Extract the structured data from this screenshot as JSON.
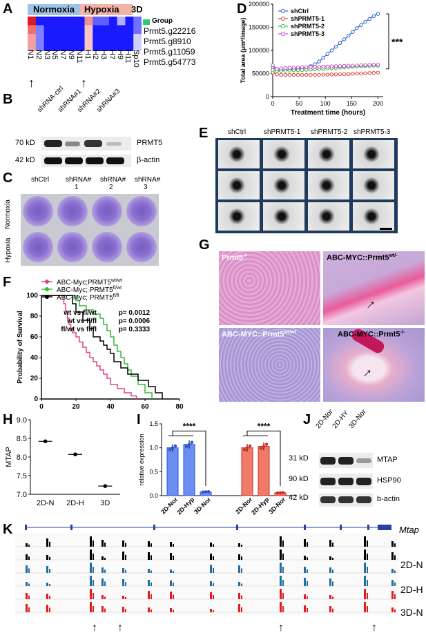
{
  "panels": {
    "A": "A",
    "B": "B",
    "C": "C",
    "D": "D",
    "E": "E",
    "F": "F",
    "G": "G",
    "H": "H",
    "I": "I",
    "J": "J",
    "K": "K"
  },
  "panel_a": {
    "groups": [
      "Normoxia",
      "Hypoxia",
      "3D",
      "Group"
    ],
    "row_labels": [
      "Prmt5.g22216",
      "Prmt5.g8910",
      "Prmt5.g11059",
      "Prmt5.g54773"
    ],
    "col_labels": [
      "N1",
      "N2",
      "N3",
      "N5",
      "N7",
      "N9",
      "N11",
      "H1",
      "H2",
      "H3",
      "H7",
      "H9",
      "H11",
      "Sp10"
    ],
    "colors": {
      "normoxia": "#9ec5e8",
      "hypoxia": "#f4b3a8",
      "group3d": "#2ecc71",
      "high": "#e41a1c",
      "low": "#1a1aff"
    }
  },
  "panel_b": {
    "lanes": [
      "shRNA-ctrl",
      "shRNA#1",
      "shRNA#2",
      "shRNA#3"
    ],
    "bands": [
      {
        "mw": "70 kD",
        "name": "PRMT5"
      },
      {
        "mw": "42 kD",
        "name": "β-actin"
      }
    ]
  },
  "panel_c": {
    "cols": [
      "shCtrl",
      "shRNA#\n1",
      "shRNA#\n2",
      "shRNA#\n3"
    ],
    "col_top": [
      "shCtrl",
      "shRNA#",
      "shRNA#",
      "shRNA#"
    ],
    "col_bottom": [
      "",
      "1",
      "2",
      "3"
    ],
    "rows": [
      "Normoxia",
      "Hypoxia"
    ]
  },
  "panel_e": {
    "cols": [
      "shCtrl",
      "shPRMT5-1",
      "shPRMT5-2",
      "shPRMT5-3"
    ]
  },
  "panel_g": {
    "labels": [
      "Prmt5",
      "ABC-MYC::Prmt5",
      "ABC-MYC::Prmt5",
      "ABC-MYC::Prmt5"
    ],
    "sups": [
      "-/-",
      "wt/-",
      "wt/wt",
      "-/-"
    ]
  },
  "panel_j": {
    "lanes": [
      "2D-Nor",
      "2D-HY",
      "3D-Nor"
    ],
    "bands": [
      {
        "mw": "31 kD",
        "name": "MTAP"
      },
      {
        "mw": "90 kD",
        "name": "HSP90"
      },
      {
        "mw": "42 kD",
        "name": "b-actin"
      }
    ]
  },
  "panel_k": {
    "gene": "Mtap",
    "tracks": [
      "2D-N",
      "2D-H",
      "3D-N"
    ],
    "track_colors": [
      "#000000",
      "#1f6e9e",
      "#e41a1c"
    ]
  },
  "chart_data": [
    {
      "id": "D",
      "type": "line",
      "xlabel": "Treatment time (hours)",
      "ylabel": "Total area (µm²/image)",
      "xlim": [
        0,
        210
      ],
      "ylim": [
        0,
        200000
      ],
      "xticks": [
        0,
        50,
        100,
        150,
        200
      ],
      "yticks": [
        0,
        50000,
        100000,
        150000,
        200000
      ],
      "ytick_labels": [
        "0",
        "50000",
        "100000",
        "150000",
        "200000"
      ],
      "annotation": "***",
      "legend": "top-left",
      "x": [
        0,
        8,
        16,
        24,
        32,
        40,
        48,
        56,
        64,
        72,
        80,
        88,
        96,
        104,
        112,
        120,
        128,
        136,
        144,
        152,
        160,
        168,
        176,
        184,
        192,
        200
      ],
      "series": [
        {
          "name": "shCtrl",
          "color": "#2a5fd4",
          "values": [
            63000,
            58000,
            57000,
            57500,
            58000,
            59000,
            60000,
            61500,
            63000,
            66000,
            70000,
            76000,
            84000,
            92000,
            100000,
            108000,
            116000,
            124000,
            132000,
            140000,
            148000,
            155000,
            162000,
            168000,
            174000,
            179000
          ]
        },
        {
          "name": "shPRMT5-1",
          "color": "#e04040",
          "values": [
            52000,
            48000,
            47000,
            47000,
            47000,
            47000,
            47000,
            47000,
            47000,
            47000,
            47000,
            47000,
            47500,
            47500,
            48000,
            48000,
            48500,
            48500,
            49000,
            49500,
            50000,
            50000,
            50500,
            51000,
            51500,
            52000
          ]
        },
        {
          "name": "shPRMT5-2",
          "color": "#33bb33",
          "values": [
            57000,
            55000,
            55000,
            56000,
            56500,
            57000,
            57000,
            57500,
            58000,
            58500,
            59000,
            59500,
            60000,
            61000,
            61500,
            62000,
            63000,
            63500,
            64000,
            64500,
            65000,
            65500,
            66000,
            66500,
            67000,
            67000
          ]
        },
        {
          "name": "shPRMT5-3",
          "color": "#cc44cc",
          "values": [
            68000,
            60000,
            61000,
            62000,
            62500,
            63000,
            63000,
            63500,
            63500,
            64000,
            64000,
            64500,
            65000,
            65000,
            65500,
            66000,
            66000,
            66500,
            67000,
            67000,
            67500,
            68000,
            68000,
            68500,
            69000,
            69000
          ]
        }
      ]
    },
    {
      "id": "F",
      "type": "line",
      "xlabel": "",
      "ylabel": "Probability of Survival",
      "xlim": [
        0,
        80
      ],
      "ylim": [
        0,
        100
      ],
      "xticks": [
        0,
        20,
        40,
        60,
        80
      ],
      "yticks": [
        0,
        20,
        40,
        60,
        80,
        100
      ],
      "legend": "top-left",
      "annotations": [
        {
          "label": "wt vs fl/wt",
          "p": "p= 0.0012"
        },
        {
          "label": "wt vs fl/fl",
          "p": "p= 0.0006"
        },
        {
          "label": "fl/wt vs fl/fl",
          "p": "p= 0.3333"
        }
      ],
      "series": [
        {
          "name": "ABC-Myc;PRMT5",
          "sup": "wt/wt",
          "color": "#e0408a",
          "x": [
            0,
            12,
            13,
            14,
            15,
            16,
            17,
            18,
            20,
            22,
            24,
            26,
            28,
            30,
            32,
            34,
            36,
            38,
            40,
            44,
            48,
            52,
            55
          ],
          "values": [
            100,
            100,
            92,
            85,
            78,
            72,
            68,
            64,
            60,
            55,
            50,
            45,
            40,
            36,
            32,
            28,
            24,
            20,
            14,
            10,
            6,
            3,
            0
          ]
        },
        {
          "name": "ABC-Myc; PRMT5",
          "sup": "fl/wt",
          "color": "#33bb33",
          "x": [
            0,
            18,
            20,
            22,
            26,
            30,
            34,
            36,
            38,
            40,
            42,
            44,
            46,
            48,
            50,
            52,
            56,
            60,
            64
          ],
          "values": [
            100,
            100,
            95,
            90,
            86,
            82,
            78,
            72,
            66,
            60,
            52,
            46,
            40,
            34,
            28,
            22,
            14,
            6,
            0
          ]
        },
        {
          "name": "ABC-Myc; PRMT5",
          "sup": "fl/fl",
          "color": "#000000",
          "x": [
            0,
            16,
            18,
            20,
            24,
            28,
            30,
            34,
            36,
            38,
            40,
            42,
            46,
            50,
            56,
            62,
            66,
            70
          ],
          "values": [
            100,
            100,
            92,
            84,
            76,
            68,
            60,
            56,
            52,
            48,
            44,
            36,
            30,
            24,
            18,
            12,
            6,
            0
          ]
        }
      ]
    },
    {
      "id": "H",
      "type": "scatter",
      "ylabel": "MTAP",
      "categories": [
        "2D-N",
        "2D-H",
        "3D"
      ],
      "values": [
        8.42,
        8.07,
        7.22
      ],
      "ylim": [
        7.0,
        9.0
      ],
      "yticks": [
        7.0,
        7.5,
        8.0,
        8.5,
        9.0
      ],
      "ytick_labels": [
        "7.0",
        "7.5",
        "8.0",
        "8.5",
        "9.0"
      ]
    },
    {
      "id": "I",
      "type": "bar",
      "ylabel": "relative expression",
      "ylim": [
        0,
        1.5
      ],
      "yticks": [
        0,
        0.5,
        1.0,
        1.5
      ],
      "ytick_labels": [
        "0.0",
        "0.5",
        "1.0",
        "1.5"
      ],
      "annotation": "****",
      "groups": [
        {
          "color": "#6a8ff0",
          "dot": "#2a4fd0",
          "categories": [
            "2D-Nor",
            "2D-Hyp",
            "3D-Nor"
          ],
          "values": [
            1.0,
            1.07,
            0.08
          ]
        },
        {
          "color": "#f07a68",
          "dot": "#d02a2a",
          "categories": [
            "2D-Nor",
            "2D-Hyp",
            "3D-Nor"
          ],
          "values": [
            1.0,
            1.03,
            0.06
          ]
        }
      ]
    }
  ]
}
